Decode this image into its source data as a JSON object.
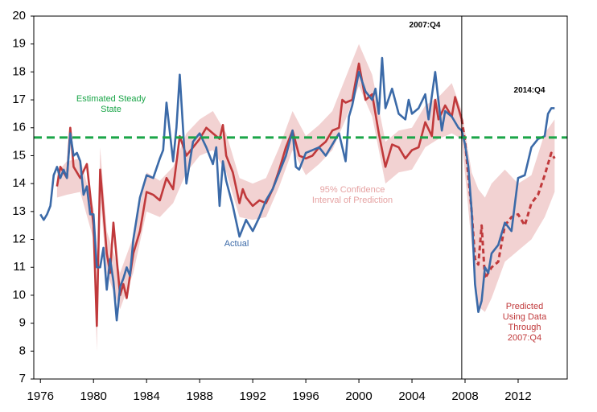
{
  "chart_data": {
    "type": "line",
    "xlim": [
      1975.5,
      2015.7
    ],
    "ylim": [
      7,
      20
    ],
    "xticks": [
      1976,
      1980,
      1984,
      1988,
      1992,
      1996,
      2000,
      2004,
      2008,
      2012
    ],
    "yticks": [
      7,
      8,
      9,
      10,
      11,
      12,
      13,
      14,
      15,
      16,
      17,
      18,
      19,
      20
    ],
    "steady_state": {
      "value": 15.65,
      "label": "Estimated Steady State",
      "color": "#1aa548"
    },
    "forecast_start": {
      "value": 2007.75,
      "label": "2007:Q4"
    },
    "data_end": {
      "value": 2014.75,
      "label": "2014:Q4"
    },
    "band": {
      "name": "95% Confidence Interval of Prediction",
      "color": "#f2d2d2",
      "x": [
        1977.25,
        1978,
        1979,
        1980,
        1980.25,
        1980.5,
        1981,
        1982,
        1983,
        1984,
        1985,
        1986,
        1987,
        1988,
        1989,
        1990,
        1991,
        1992,
        1993,
        1994,
        1995,
        1996,
        1997,
        1998,
        1999,
        2000,
        2001,
        2002,
        2003,
        2004,
        2005,
        2006,
        2007,
        2007.75,
        2008.5,
        2009,
        2009.5,
        2010,
        2011,
        2012,
        2013,
        2014,
        2014.75
      ],
      "lower": [
        13.5,
        13.6,
        13.7,
        12.0,
        8.0,
        13.5,
        10.8,
        9.5,
        10.8,
        13.0,
        12.8,
        13.3,
        14.4,
        15.0,
        15.2,
        14.4,
        12.8,
        12.7,
        12.8,
        13.9,
        15.2,
        14.3,
        14.7,
        15.2,
        16.3,
        17.5,
        16.4,
        14.0,
        14.4,
        14.5,
        15.3,
        15.6,
        15.8,
        15.6,
        11.8,
        9.6,
        9.4,
        9.9,
        11.2,
        11.6,
        12.0,
        12.8,
        13.7
      ],
      "upper": [
        14.4,
        14.8,
        14.9,
        13.1,
        9.9,
        15.3,
        12.3,
        10.8,
        12.1,
        14.4,
        14.1,
        14.6,
        15.8,
        16.3,
        16.6,
        15.8,
        14.2,
        14.0,
        14.2,
        15.3,
        16.6,
        15.7,
        16.1,
        16.6,
        17.8,
        19.0,
        17.9,
        15.5,
        15.9,
        16.0,
        16.8,
        17.1,
        17.6,
        16.6,
        14.4,
        13.8,
        13.5,
        14.0,
        14.5,
        14.0,
        14.3,
        15.8,
        16.3
      ]
    },
    "series": [
      {
        "name": "Actual",
        "color": "#3b6aa8",
        "dashed": false,
        "x": [
          1976,
          1976.25,
          1976.5,
          1976.75,
          1977,
          1977.25,
          1977.5,
          1977.75,
          1978,
          1978.25,
          1978.5,
          1978.75,
          1979,
          1979.25,
          1979.5,
          1979.75,
          1980,
          1980.25,
          1980.5,
          1980.75,
          1981,
          1981.25,
          1981.5,
          1981.75,
          1982,
          1982.25,
          1982.5,
          1982.75,
          1983,
          1983.5,
          1984,
          1984.5,
          1985,
          1985.25,
          1985.5,
          1986,
          1986.25,
          1986.5,
          1987,
          1987.5,
          1988,
          1988.5,
          1989,
          1989.25,
          1989.5,
          1989.75,
          1990,
          1990.5,
          1991,
          1991.5,
          1992,
          1992.5,
          1993,
          1993.5,
          1994,
          1994.5,
          1995,
          1995.25,
          1995.5,
          1996,
          1996.5,
          1997,
          1997.5,
          1998,
          1998.5,
          1999,
          1999.25,
          1999.5,
          2000,
          2000.5,
          2001,
          2001.25,
          2001.5,
          2001.75,
          2002,
          2002.5,
          2003,
          2003.5,
          2003.75,
          2004,
          2004.5,
          2005,
          2005.25,
          2005.75,
          2006.25,
          2006.5,
          2007,
          2007.5,
          2007.75,
          2008,
          2008.25,
          2008.5,
          2008.75,
          2009,
          2009.25,
          2009.5,
          2009.75,
          2010,
          2010.5,
          2011,
          2011.5,
          2012,
          2012.5,
          2013,
          2013.5,
          2014,
          2014.25,
          2014.5,
          2014.75
        ],
        "values": [
          12.9,
          12.7,
          12.9,
          13.2,
          14.3,
          14.6,
          14.2,
          14.5,
          14.2,
          15.8,
          15.0,
          15.1,
          14.8,
          13.6,
          13.9,
          12.9,
          12.9,
          11.0,
          11.0,
          11.7,
          10.2,
          11.3,
          10.5,
          9.1,
          10.3,
          10.6,
          11.0,
          10.7,
          12.0,
          13.5,
          14.3,
          14.2,
          14.9,
          15.2,
          16.9,
          14.8,
          16.0,
          17.9,
          14.0,
          15.5,
          15.8,
          15.3,
          14.7,
          15.3,
          13.2,
          14.8,
          14.1,
          13.2,
          12.1,
          12.7,
          12.3,
          12.8,
          13.4,
          13.8,
          14.4,
          15.0,
          15.9,
          14.6,
          14.5,
          15.1,
          15.2,
          15.3,
          15.0,
          15.4,
          15.8,
          14.8,
          16.4,
          16.8,
          18.0,
          17.3,
          17.0,
          17.4,
          16.5,
          18.5,
          16.7,
          17.4,
          16.5,
          16.3,
          17.0,
          16.5,
          16.7,
          17.2,
          16.3,
          18.0,
          15.9,
          16.6,
          16.4,
          16.0,
          15.9,
          15.4,
          14.6,
          13.0,
          10.4,
          9.4,
          9.8,
          11.0,
          10.8,
          11.5,
          11.8,
          12.6,
          12.3,
          14.2,
          14.3,
          15.3,
          15.6,
          15.7,
          16.5,
          16.7,
          16.7
        ]
      },
      {
        "color": "#c0393b",
        "dashed": false,
        "x": [
          1977.25,
          1977.5,
          1978,
          1978.25,
          1978.5,
          1979,
          1979.5,
          1980,
          1980.25,
          1980.5,
          1981,
          1981.25,
          1981.5,
          1982,
          1982.25,
          1982.5,
          1983,
          1983.5,
          1984,
          1984.5,
          1985,
          1985.5,
          1986,
          1986.5,
          1987,
          1987.5,
          1988,
          1988.5,
          1989,
          1989.5,
          1989.75,
          1990,
          1990.5,
          1991,
          1991.25,
          1991.5,
          1992,
          1992.5,
          1993,
          1993.5,
          1994,
          1994.5,
          1995,
          1995.5,
          1996,
          1996.5,
          1997,
          1997.5,
          1998,
          1998.5,
          1998.75,
          1999,
          1999.5,
          2000,
          2000.5,
          2001,
          2001.5,
          2002,
          2002.5,
          2003,
          2003.5,
          2004,
          2004.5,
          2005,
          2005.5,
          2005.75,
          2006,
          2006.5,
          2007,
          2007.25,
          2007.75
        ],
        "values": [
          13.9,
          14.6,
          14.2,
          16.0,
          14.6,
          14.2,
          14.7,
          12.5,
          8.9,
          14.5,
          11.5,
          10.8,
          12.6,
          10.0,
          10.4,
          9.9,
          11.5,
          12.3,
          13.7,
          13.6,
          13.4,
          14.2,
          13.8,
          15.7,
          15.0,
          15.3,
          15.6,
          16.0,
          15.8,
          15.6,
          16.1,
          15.0,
          14.4,
          13.3,
          13.8,
          13.5,
          13.2,
          13.4,
          13.3,
          13.8,
          14.5,
          15.3,
          15.9,
          15.0,
          14.9,
          15.0,
          15.3,
          15.5,
          15.9,
          16.0,
          17.0,
          16.9,
          17.0,
          18.3,
          17.0,
          17.2,
          15.8,
          14.6,
          15.4,
          15.3,
          14.9,
          15.2,
          15.3,
          16.2,
          15.7,
          17.0,
          16.3,
          16.8,
          16.4,
          17.1,
          16.3
        ]
      },
      {
        "name": "Predicted Using Data Through 2007:Q4",
        "color": "#c0393b",
        "dashed": true,
        "x": [
          2007.75,
          2008,
          2008.5,
          2008.75,
          2009,
          2009.25,
          2009.5,
          2010,
          2010.5,
          2011,
          2011.5,
          2012,
          2012.5,
          2013,
          2013.5,
          2014,
          2014.5,
          2014.75
        ],
        "values": [
          16.3,
          15.5,
          13.0,
          11.3,
          11.1,
          12.5,
          10.6,
          11.0,
          11.2,
          12.5,
          12.8,
          12.9,
          12.5,
          13.3,
          13.6,
          14.3,
          15.1,
          14.9
        ]
      }
    ]
  }
}
